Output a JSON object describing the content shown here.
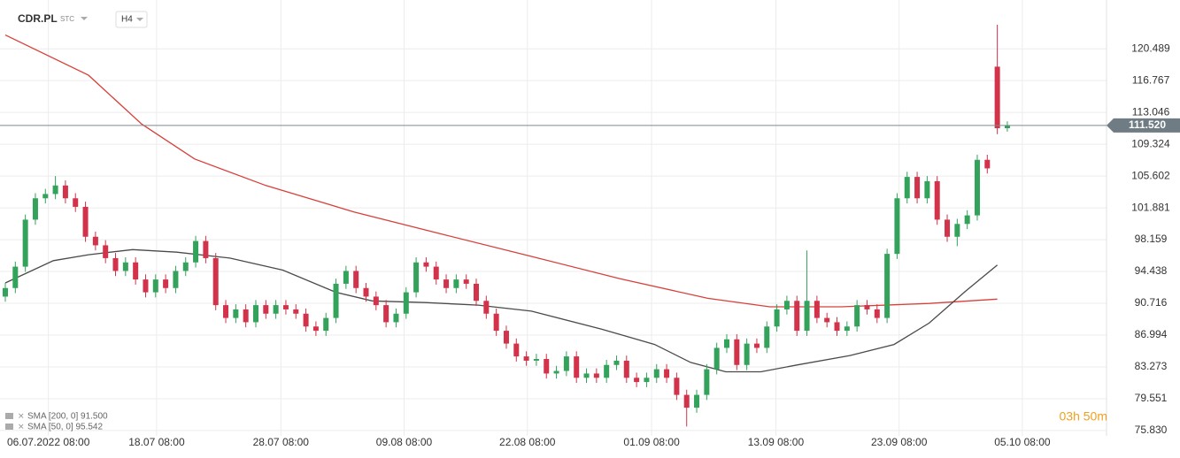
{
  "header": {
    "symbol": "CDR.PL",
    "mode": "STC",
    "interval": "H4"
  },
  "timer": "03h 50m",
  "chart_data": {
    "type": "candlestick",
    "up_color": "#33a25b",
    "down_color": "#d2334a",
    "xlim": [
      -0.53,
      109.9
    ],
    "xticks": [
      {
        "value": 4.3,
        "label": "06.07.2022 08:00"
      },
      {
        "value": 15.1,
        "label": "18.07 08:00"
      },
      {
        "value": 27.5,
        "label": "28.07 08:00"
      },
      {
        "value": 39.8,
        "label": "09.08 08:00"
      },
      {
        "value": 52.1,
        "label": "22.08 08:00"
      },
      {
        "value": 64.5,
        "label": "01.09 08:00"
      },
      {
        "value": 76.9,
        "label": "13.09 08:00"
      },
      {
        "value": 89.2,
        "label": "23.09 08:00"
      },
      {
        "value": 101.5,
        "label": "05.10 08:00"
      }
    ],
    "ylim": [
      75.2,
      126.2
    ],
    "yticks": [
      {
        "value": 75.83,
        "label": "75.830"
      },
      79.551,
      83.273,
      86.994,
      90.716,
      94.438,
      98.159,
      101.881,
      105.602,
      109.324,
      113.046,
      116.767,
      120.489
    ],
    "grid": true,
    "current_price": {
      "value": 111.52,
      "label": "111.520"
    },
    "candles": {
      "open": [
        91.5,
        92.5,
        95,
        100.5,
        103,
        103.5,
        104.5,
        103,
        102,
        98.5,
        97.5,
        96,
        94.5,
        95.5,
        93.5,
        92,
        93.5,
        92.5,
        94.5,
        95.5,
        98,
        96,
        90.5,
        89,
        90,
        88.5,
        90.5,
        89.5,
        90.5,
        90,
        89.5,
        88,
        87.5,
        89,
        93,
        94.5,
        92.5,
        91.5,
        90.5,
        88.5,
        89.5,
        92,
        95.5,
        95,
        93.5,
        92.5,
        93.5,
        93,
        91,
        89.5,
        87.5,
        86,
        84.5,
        84,
        84.2,
        82.5,
        82.8,
        84.5,
        82,
        82.5,
        82,
        83.5,
        84,
        82,
        81.5,
        82,
        83,
        82,
        80,
        78.5,
        80,
        83,
        85.5,
        86.5,
        83.5,
        86,
        85.5,
        88,
        90,
        91,
        87.5,
        91,
        89,
        88.5,
        87.5,
        88,
        90.5,
        90,
        89,
        96.5,
        103,
        105.5,
        103,
        105,
        100.5,
        98.5,
        100,
        101,
        107.5,
        118.4,
        111.2
      ],
      "high": [
        93.1,
        95.6,
        101.1,
        103.6,
        104.1,
        105.6,
        105.1,
        103.6,
        102.6,
        99.1,
        98.1,
        96.6,
        96.1,
        96.1,
        94.1,
        94.1,
        94.1,
        95.1,
        96.1,
        98.6,
        98.6,
        96.6,
        91.1,
        90.6,
        90.6,
        91.1,
        91.1,
        91.1,
        91.1,
        90.6,
        90.1,
        88.6,
        89.6,
        93.6,
        95.1,
        95.1,
        93.1,
        92.1,
        91.1,
        90.1,
        92.6,
        96.1,
        96.1,
        95.6,
        94.1,
        94.1,
        94.1,
        93.6,
        91.6,
        90.1,
        88.1,
        86.6,
        85.1,
        84.8,
        84.8,
        83.4,
        85.1,
        85.1,
        83.1,
        83.1,
        84.1,
        84.6,
        84.6,
        82.6,
        82.6,
        83.6,
        83.6,
        82.6,
        80.6,
        80.6,
        83.6,
        86.1,
        87.1,
        87.1,
        86.6,
        86.6,
        88.6,
        90.6,
        91.6,
        91.6,
        96.9,
        91.6,
        89.6,
        89.1,
        88.6,
        91.1,
        91.1,
        90.6,
        97.1,
        103.6,
        106.1,
        106.1,
        105.6,
        105.6,
        101.1,
        100.6,
        101.6,
        108.1,
        108.1,
        123.3,
        112
      ],
      "low": [
        90.9,
        91.9,
        94.4,
        99.9,
        102.4,
        102.9,
        102.4,
        101.4,
        97.9,
        96.9,
        95.4,
        93.9,
        93.9,
        92.9,
        91.4,
        91.4,
        91.9,
        91.9,
        93.9,
        94.9,
        95.4,
        89.9,
        88.4,
        88.4,
        87.9,
        87.9,
        88.9,
        88.9,
        89.4,
        88.9,
        87.4,
        86.9,
        86.9,
        88.4,
        92.4,
        91.9,
        90.9,
        89.9,
        87.9,
        87.9,
        88.9,
        91.4,
        94.4,
        92.9,
        91.9,
        91.9,
        92.4,
        90.4,
        88.9,
        86.9,
        85.4,
        83.9,
        83.4,
        83.4,
        81.9,
        81.9,
        82.2,
        81.4,
        81.4,
        81.4,
        81.4,
        82.9,
        81.4,
        80.9,
        80.9,
        81.4,
        81.4,
        79.4,
        76.3,
        77.9,
        79.4,
        82.4,
        84.9,
        82.9,
        82.9,
        84.9,
        84.9,
        87.4,
        89.4,
        86.9,
        86.9,
        88.4,
        87.9,
        86.9,
        86.9,
        87.4,
        89.4,
        88.4,
        88.4,
        95.9,
        102.4,
        102.4,
        102.4,
        99.9,
        97.9,
        97.4,
        99.4,
        100.4,
        105.9,
        110.5,
        110.8
      ],
      "close": [
        92.5,
        95,
        100.5,
        103,
        103.5,
        104.5,
        103,
        102,
        98.5,
        97.5,
        96,
        94.5,
        95.5,
        93.5,
        92,
        93.5,
        92.5,
        94.5,
        95.5,
        98,
        96,
        90.5,
        89,
        90,
        88.5,
        90.5,
        89.5,
        90.5,
        90,
        89.5,
        88,
        87.5,
        89,
        93,
        94.5,
        92.5,
        91.5,
        90.5,
        88.5,
        89.5,
        92,
        95.5,
        95,
        93.5,
        92.5,
        93.5,
        93,
        91,
        89.5,
        87.5,
        86,
        84.5,
        84,
        84.2,
        82.5,
        82.8,
        84.5,
        82,
        82.5,
        82,
        83.5,
        84,
        82,
        81.5,
        82,
        83,
        82,
        80,
        78.5,
        80,
        83,
        85.5,
        86.5,
        83.5,
        86,
        85.5,
        88,
        90,
        91,
        87.5,
        91,
        89,
        88.5,
        87.5,
        88,
        90.5,
        90,
        89,
        96.5,
        103,
        105.5,
        103,
        105,
        100.5,
        98.5,
        100,
        101,
        107.5,
        106.5,
        111.2,
        111.52
      ]
    },
    "series": [
      {
        "name": "SMA [200, 0] 91.500",
        "color": "#d7403a",
        "x": [
          0,
          8.3,
          13.6,
          18.9,
          26,
          34.8,
          43.6,
          52.5,
          61.3,
          70.1,
          76.3,
          83.4,
          92.2,
          99
        ],
        "values": [
          122.1,
          117.4,
          111.7,
          107.6,
          104.5,
          101.4,
          98.8,
          96.2,
          93.6,
          91.3,
          90.3,
          90.3,
          90.7,
          91.2
        ]
      },
      {
        "name": "SMA [50, 0] 95.542",
        "color": "#4a4a4a",
        "x": [
          0,
          4.8,
          8.3,
          12.7,
          17.1,
          22.4,
          27.7,
          33,
          36.6,
          41.9,
          47.2,
          52.5,
          59.5,
          64.8,
          68.4,
          71.9,
          75.4,
          79,
          84.3,
          88.7,
          92.2,
          95.8,
          99
        ],
        "values": [
          93.1,
          95.7,
          96.4,
          97,
          96.7,
          96,
          94.6,
          92,
          91,
          90.8,
          90.5,
          89.8,
          87.7,
          85.9,
          83.8,
          82.7,
          82.7,
          83.5,
          84.6,
          85.9,
          88.4,
          92.1,
          95.2
        ]
      }
    ]
  }
}
